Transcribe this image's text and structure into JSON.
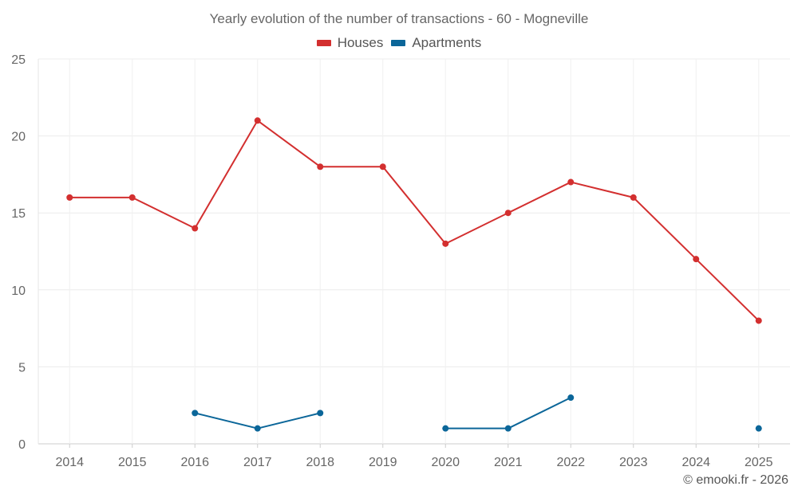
{
  "chart_data": {
    "type": "line",
    "title": "Yearly evolution of the number of transactions - 60 - Mogneville",
    "xlabel": "",
    "ylabel": "",
    "categories": [
      "2014",
      "2015",
      "2016",
      "2017",
      "2018",
      "2019",
      "2020",
      "2021",
      "2022",
      "2023",
      "2024",
      "2025"
    ],
    "ylim": [
      0,
      25
    ],
    "yticks": [
      0,
      5,
      10,
      15,
      20,
      25
    ],
    "grid": true,
    "legend_position": "top-center",
    "series": [
      {
        "name": "Houses",
        "color": "#d32f2f",
        "values": [
          16,
          16,
          14,
          21,
          18,
          18,
          13,
          15,
          17,
          16,
          12,
          8
        ]
      },
      {
        "name": "Apartments",
        "color": "#0b6699",
        "values": [
          null,
          null,
          2,
          1,
          2,
          null,
          1,
          1,
          3,
          null,
          null,
          1
        ]
      }
    ]
  },
  "credit": "© emooki.fr - 2026"
}
